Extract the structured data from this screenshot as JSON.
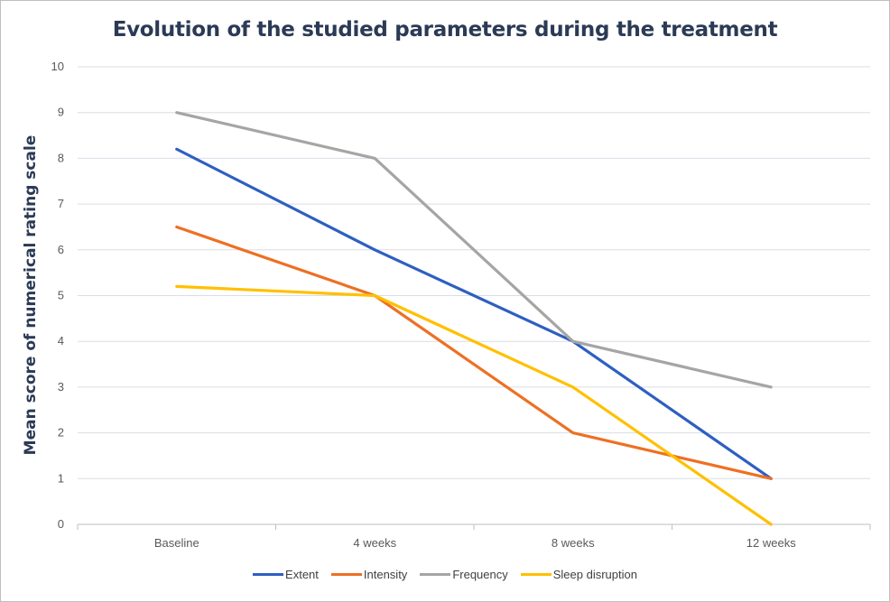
{
  "chart_data": {
    "type": "line",
    "title": "Evolution of the studied parameters during the treatment",
    "xlabel": "",
    "ylabel": "Mean score of numerical rating scale",
    "categories": [
      "Baseline",
      "4 weeks",
      "8 weeks",
      "12 weeks"
    ],
    "ylim": [
      0,
      10
    ],
    "yticks": [
      "0",
      "1",
      "2",
      "3",
      "4",
      "5",
      "6",
      "7",
      "8",
      "9",
      "10"
    ],
    "grid": true,
    "legend_position": "bottom",
    "series": [
      {
        "name": "Extent",
        "color": "#2e5fc1",
        "values": [
          8.2,
          6,
          4,
          1
        ]
      },
      {
        "name": "Intensity",
        "color": "#ed7023",
        "values": [
          6.5,
          5,
          2,
          1
        ]
      },
      {
        "name": "Frequency",
        "color": "#a5a5a5",
        "values": [
          9,
          8,
          4,
          3
        ]
      },
      {
        "name": "Sleep disruption",
        "color": "#ffc000",
        "values": [
          5.2,
          5,
          3,
          0
        ]
      }
    ]
  }
}
